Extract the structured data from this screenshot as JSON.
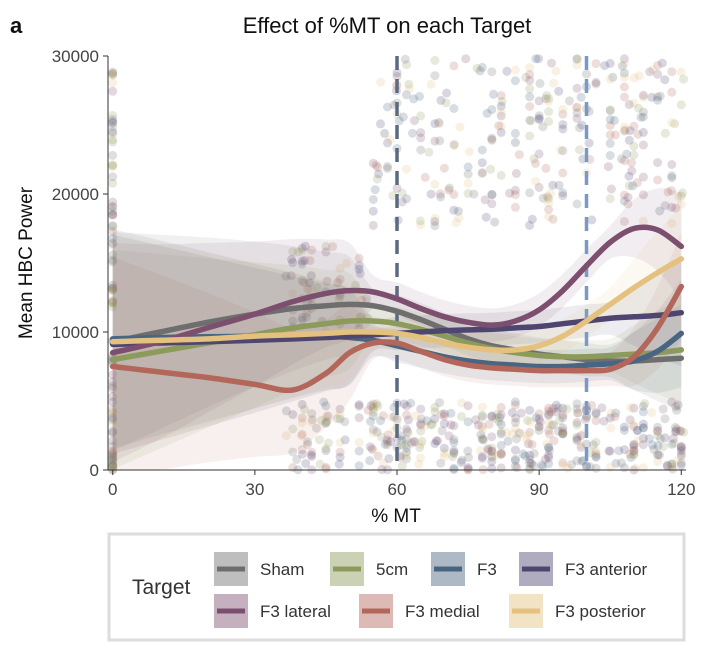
{
  "chart_data": {
    "type": "line",
    "panel_label": "a",
    "title": "Effect of %MT on each Target",
    "xlabel": "% MT",
    "ylabel": "Mean HBC Power",
    "xlim": [
      -1,
      121
    ],
    "ylim": [
      0,
      30000
    ],
    "xticks": [
      0,
      30,
      60,
      90,
      120
    ],
    "yticks": [
      0,
      10000,
      20000,
      30000
    ],
    "xtick_labels": [
      "0",
      "30",
      "60",
      "90",
      "120"
    ],
    "ytick_labels": [
      "0",
      "10000",
      "20000",
      "30000"
    ],
    "grid": false,
    "reference_lines": [
      {
        "x": 60,
        "color": "#5b6a80",
        "style": "dashed"
      },
      {
        "x": 100,
        "color": "#7a9ac4",
        "style": "dashed"
      }
    ],
    "legend": {
      "title": "Target",
      "position": "bottom"
    },
    "x": [
      0,
      10,
      20,
      30,
      38,
      45,
      50,
      55,
      60,
      65,
      70,
      75,
      80,
      85,
      90,
      95,
      100,
      105,
      110,
      115,
      120
    ],
    "series": [
      {
        "name": "Sham",
        "color": "#6e6e6e",
        "values": [
          9300,
          10000,
          10700,
          11300,
          11700,
          11900,
          12000,
          11900,
          11500,
          10900,
          10200,
          9500,
          9000,
          8700,
          8400,
          8200,
          8000,
          7900,
          7900,
          8000,
          8100
        ]
      },
      {
        "name": "5cm",
        "color": "#8c9a5b",
        "values": [
          8000,
          8600,
          9200,
          9800,
          10300,
          10600,
          10800,
          10800,
          10600,
          10200,
          9700,
          9200,
          8800,
          8500,
          8300,
          8200,
          8200,
          8300,
          8400,
          8500,
          8700
        ]
      },
      {
        "name": "F3",
        "color": "#4a6581",
        "values": [
          9500,
          9600,
          9650,
          9700,
          9750,
          9700,
          9600,
          9400,
          9000,
          8600,
          8200,
          7900,
          7700,
          7600,
          7500,
          7500,
          7600,
          7700,
          7900,
          8600,
          9900
        ]
      },
      {
        "name": "F3 anterior",
        "color": "#4f4670",
        "values": [
          9100,
          9200,
          9300,
          9400,
          9500,
          9600,
          9700,
          9800,
          9900,
          10000,
          10100,
          10150,
          10200,
          10300,
          10400,
          10600,
          10800,
          11000,
          11100,
          11200,
          11400
        ]
      },
      {
        "name": "F3 lateral",
        "color": "#7d4f6e",
        "values": [
          8500,
          9300,
          10300,
          11300,
          12200,
          12800,
          13000,
          12900,
          12400,
          11700,
          11100,
          10700,
          10500,
          10800,
          11600,
          13000,
          14800,
          16500,
          17500,
          17400,
          16200
        ]
      },
      {
        "name": "F3 medial",
        "color": "#b3675a",
        "values": [
          7500,
          7100,
          6700,
          6200,
          5800,
          7000,
          8500,
          9200,
          9200,
          8600,
          8000,
          7600,
          7400,
          7300,
          7200,
          7200,
          7200,
          7300,
          8200,
          10300,
          13300
        ]
      },
      {
        "name": "F3 posterior",
        "color": "#e4c17e",
        "values": [
          9300,
          9400,
          9500,
          9700,
          9800,
          9900,
          10000,
          10000,
          9900,
          9600,
          9200,
          8900,
          8700,
          8700,
          9000,
          9700,
          10800,
          12000,
          13200,
          14300,
          15300
        ]
      }
    ]
  }
}
